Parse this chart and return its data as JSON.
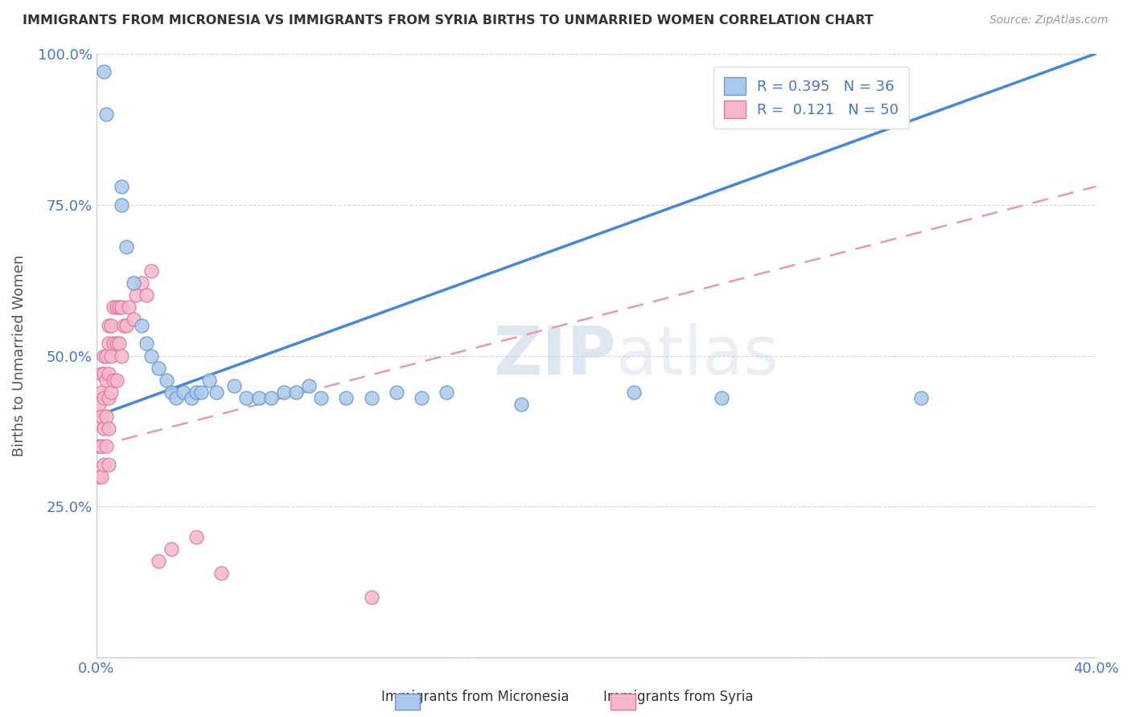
{
  "title": "IMMIGRANTS FROM MICRONESIA VS IMMIGRANTS FROM SYRIA BIRTHS TO UNMARRIED WOMEN CORRELATION CHART",
  "source": "Source: ZipAtlas.com",
  "ylabel": "Births to Unmarried Women",
  "xlim": [
    0.0,
    0.4
  ],
  "ylim": [
    0.0,
    1.0
  ],
  "xticks": [
    0.0,
    0.05,
    0.1,
    0.15,
    0.2,
    0.25,
    0.3,
    0.35,
    0.4
  ],
  "yticks": [
    0.0,
    0.25,
    0.5,
    0.75,
    1.0
  ],
  "micronesia_color": "#aac8ec",
  "micronesia_edge": "#6699cc",
  "syria_color": "#f5b8cb",
  "syria_edge": "#e07898",
  "micronesia_R": 0.395,
  "micronesia_N": 36,
  "syria_R": 0.121,
  "syria_N": 50,
  "legend_R_color": "#4477cc",
  "mic_line_color": "#4488dd",
  "syr_line_color": "#e899aa",
  "watermark_color": "#d5e4f0",
  "micronesia_x": [
    0.003,
    0.004,
    0.01,
    0.01,
    0.012,
    0.015,
    0.018,
    0.02,
    0.022,
    0.025,
    0.028,
    0.03,
    0.032,
    0.035,
    0.038,
    0.04,
    0.042,
    0.045,
    0.048,
    0.055,
    0.06,
    0.065,
    0.07,
    0.075,
    0.08,
    0.085,
    0.09,
    0.1,
    0.11,
    0.12,
    0.13,
    0.14,
    0.17,
    0.215,
    0.25,
    0.33
  ],
  "micronesia_y": [
    0.97,
    0.9,
    0.78,
    0.75,
    0.68,
    0.62,
    0.55,
    0.52,
    0.5,
    0.48,
    0.46,
    0.44,
    0.43,
    0.44,
    0.43,
    0.44,
    0.44,
    0.46,
    0.44,
    0.45,
    0.43,
    0.43,
    0.43,
    0.44,
    0.44,
    0.45,
    0.43,
    0.43,
    0.43,
    0.44,
    0.43,
    0.44,
    0.42,
    0.44,
    0.43,
    0.43
  ],
  "syria_x": [
    0.001,
    0.001,
    0.001,
    0.001,
    0.002,
    0.002,
    0.002,
    0.002,
    0.002,
    0.003,
    0.003,
    0.003,
    0.003,
    0.003,
    0.004,
    0.004,
    0.004,
    0.004,
    0.005,
    0.005,
    0.005,
    0.005,
    0.005,
    0.005,
    0.006,
    0.006,
    0.006,
    0.007,
    0.007,
    0.007,
    0.008,
    0.008,
    0.008,
    0.009,
    0.009,
    0.01,
    0.01,
    0.011,
    0.012,
    0.013,
    0.015,
    0.016,
    0.018,
    0.02,
    0.022,
    0.025,
    0.03,
    0.04,
    0.05,
    0.11
  ],
  "syria_y": [
    0.42,
    0.39,
    0.35,
    0.3,
    0.47,
    0.44,
    0.4,
    0.35,
    0.3,
    0.5,
    0.47,
    0.43,
    0.38,
    0.32,
    0.5,
    0.46,
    0.4,
    0.35,
    0.55,
    0.52,
    0.47,
    0.43,
    0.38,
    0.32,
    0.55,
    0.5,
    0.44,
    0.58,
    0.52,
    0.46,
    0.58,
    0.52,
    0.46,
    0.58,
    0.52,
    0.58,
    0.5,
    0.55,
    0.55,
    0.58,
    0.56,
    0.6,
    0.62,
    0.6,
    0.64,
    0.16,
    0.18,
    0.2,
    0.14,
    0.1
  ]
}
